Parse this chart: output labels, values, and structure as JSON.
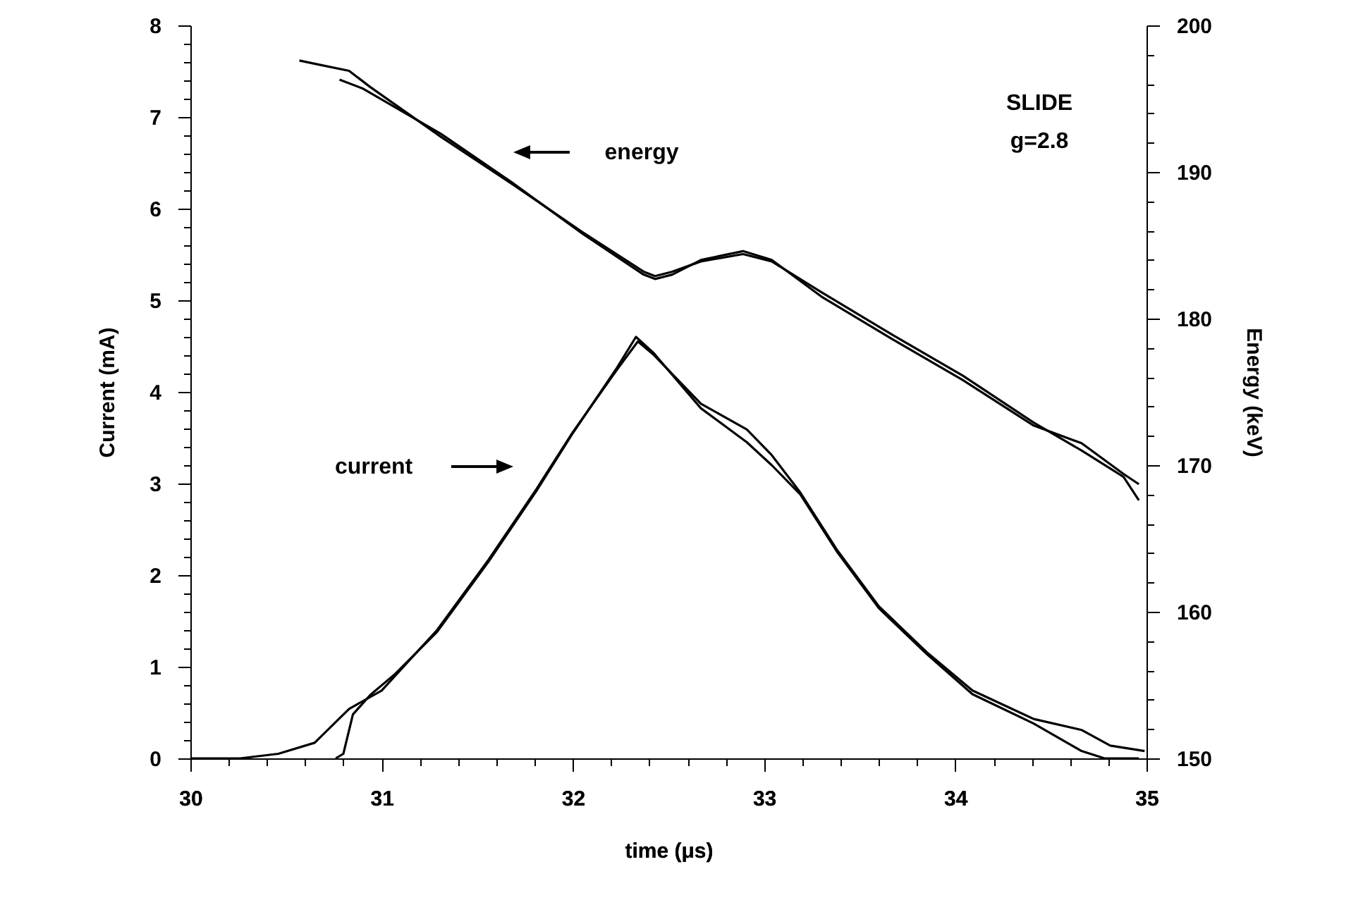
{
  "chart_data": {
    "type": "line",
    "xlabel": "time (μs)",
    "ylabel": "Current (mA)",
    "y2label": "Energy (keV)",
    "xlim": [
      30,
      35
    ],
    "ylim": [
      0,
      8
    ],
    "y2lim": [
      150,
      200
    ],
    "xticks": [
      30,
      {
        "value": 30.2,
        "label": null
      },
      {
        "value": 30.4,
        "label": null
      },
      {
        "value": 30.6,
        "label": null
      },
      {
        "value": 30.8,
        "label": null
      },
      31,
      {
        "value": 31.2,
        "label": null
      },
      {
        "value": 31.4,
        "label": null
      },
      {
        "value": 31.6,
        "label": null
      },
      {
        "value": 31.8,
        "label": null
      },
      32,
      {
        "value": 32.2,
        "label": null
      },
      {
        "value": 32.4,
        "label": null
      },
      {
        "value": 32.6,
        "label": null
      },
      {
        "value": 32.8,
        "label": null
      },
      33,
      {
        "value": 33.2,
        "label": null
      },
      {
        "value": 33.4,
        "label": null
      },
      {
        "value": 33.6,
        "label": null
      },
      {
        "value": 33.8,
        "label": null
      },
      34,
      {
        "value": 34.2,
        "label": null
      },
      {
        "value": 34.4,
        "label": null
      },
      {
        "value": 34.6,
        "label": null
      },
      {
        "value": 34.8,
        "label": null
      },
      35
    ],
    "yticks": [
      0,
      {
        "value": 0.2,
        "label": null
      },
      {
        "value": 0.4,
        "label": null
      },
      {
        "value": 0.6,
        "label": null
      },
      {
        "value": 0.8,
        "label": null
      },
      1,
      {
        "value": 1.2,
        "label": null
      },
      {
        "value": 1.4,
        "label": null
      },
      {
        "value": 1.6,
        "label": null
      },
      {
        "value": 1.8,
        "label": null
      },
      2,
      {
        "value": 2.2,
        "label": null
      },
      {
        "value": 2.4,
        "label": null
      },
      {
        "value": 2.6,
        "label": null
      },
      {
        "value": 2.8,
        "label": null
      },
      3,
      {
        "value": 3.2,
        "label": null
      },
      {
        "value": 3.4,
        "label": null
      },
      {
        "value": 3.6,
        "label": null
      },
      {
        "value": 3.8,
        "label": null
      },
      4,
      {
        "value": 4.2,
        "label": null
      },
      {
        "value": 4.4,
        "label": null
      },
      {
        "value": 4.6,
        "label": null
      },
      {
        "value": 4.8,
        "label": null
      },
      5,
      {
        "value": 5.2,
        "label": null
      },
      {
        "value": 5.4,
        "label": null
      },
      {
        "value": 5.6,
        "label": null
      },
      {
        "value": 5.8,
        "label": null
      },
      6,
      {
        "value": 6.2,
        "label": null
      },
      {
        "value": 6.4,
        "label": null
      },
      {
        "value": 6.6,
        "label": null
      },
      {
        "value": 6.8,
        "label": null
      },
      7,
      {
        "value": 7.2,
        "label": null
      },
      {
        "value": 7.4,
        "label": null
      },
      {
        "value": 7.6,
        "label": null
      },
      {
        "value": 7.8,
        "label": null
      },
      8
    ],
    "y2ticks": [
      150,
      {
        "value": 152,
        "label": null
      },
      {
        "value": 154,
        "label": null
      },
      {
        "value": 156,
        "label": null
      },
      {
        "value": 158,
        "label": null
      },
      160,
      {
        "value": 162,
        "label": null
      },
      {
        "value": 164,
        "label": null
      },
      {
        "value": 166,
        "label": null
      },
      {
        "value": 168,
        "label": null
      },
      170,
      {
        "value": 172,
        "label": null
      },
      {
        "value": 174,
        "label": null
      },
      {
        "value": 176,
        "label": null
      },
      {
        "value": 178,
        "label": null
      },
      180,
      {
        "value": 182,
        "label": null
      },
      {
        "value": 184,
        "label": null
      },
      {
        "value": 186,
        "label": null
      },
      {
        "value": 188,
        "label": null
      },
      190,
      {
        "value": 192,
        "label": null
      },
      {
        "value": 194,
        "label": null
      },
      {
        "value": 196,
        "label": null
      },
      {
        "value": 198,
        "label": null
      },
      200
    ],
    "series": [
      {
        "color": "#000000",
        "x": [
          30,
          30.26,
          30.46,
          30.65,
          30.83,
          31.0,
          31.29,
          31.56,
          31.81,
          32.0,
          32.23,
          32.34,
          32.42,
          32.67,
          32.91,
          33.04,
          33.19,
          33.38,
          33.6,
          33.85,
          34.09,
          34.41,
          34.66,
          34.81,
          34.99
        ],
        "values": [
          0,
          0,
          0.05,
          0.17,
          0.54,
          0.74,
          1.4,
          2.17,
          2.94,
          3.56,
          4.24,
          4.55,
          4.41,
          3.87,
          3.59,
          3.31,
          2.9,
          2.28,
          1.66,
          1.16,
          0.74,
          0.43,
          0.31,
          0.14,
          0.08
        ]
      },
      {
        "color": "#000000",
        "x": [
          30.76,
          30.8,
          30.85,
          30.94,
          31.07,
          31.29,
          31.56,
          31.81,
          32.0,
          32.23,
          32.33,
          32.42,
          32.67,
          32.91,
          33.04,
          33.19,
          33.38,
          33.6,
          33.85,
          34.09,
          34.41,
          34.66,
          34.78,
          34.96
        ],
        "values": [
          0,
          0.05,
          0.48,
          0.69,
          0.92,
          1.38,
          2.15,
          2.92,
          3.55,
          4.26,
          4.6,
          4.43,
          3.82,
          3.45,
          3.2,
          2.88,
          2.26,
          1.64,
          1.14,
          0.7,
          0.38,
          0.08,
          0,
          0
        ]
      },
      {
        "color": "#000000",
        "axis": "y2",
        "x": [
          30.57,
          30.68,
          30.83,
          30.94,
          31.31,
          31.68,
          32.05,
          32.37,
          32.43,
          32.52,
          32.67,
          32.89,
          33.04,
          33.3,
          33.67,
          34.04,
          34.41,
          34.66,
          34.88,
          34.96
        ],
        "values": [
          197.6,
          197.3,
          196.9,
          195.8,
          192.4,
          189.2,
          185.9,
          183.2,
          182.9,
          183.2,
          183.9,
          184.4,
          183.9,
          181.8,
          178.9,
          176.1,
          172.9,
          171.0,
          169.2,
          167.6
        ]
      },
      {
        "color": "#000000",
        "axis": "y2",
        "x": [
          30.78,
          30.9,
          31.31,
          31.68,
          32.05,
          32.37,
          32.43,
          32.52,
          32.67,
          32.89,
          33.04,
          33.3,
          33.67,
          34.04,
          34.41,
          34.66,
          34.88,
          34.96
        ],
        "values": [
          196.3,
          195.7,
          192.6,
          189.3,
          185.8,
          183.0,
          182.7,
          183.0,
          184.0,
          184.6,
          184.0,
          181.5,
          178.6,
          175.8,
          172.7,
          171.5,
          169.4,
          168.7
        ]
      }
    ],
    "annotations": [
      "energy",
      "current",
      "SLIDE",
      "g=2.8"
    ]
  }
}
